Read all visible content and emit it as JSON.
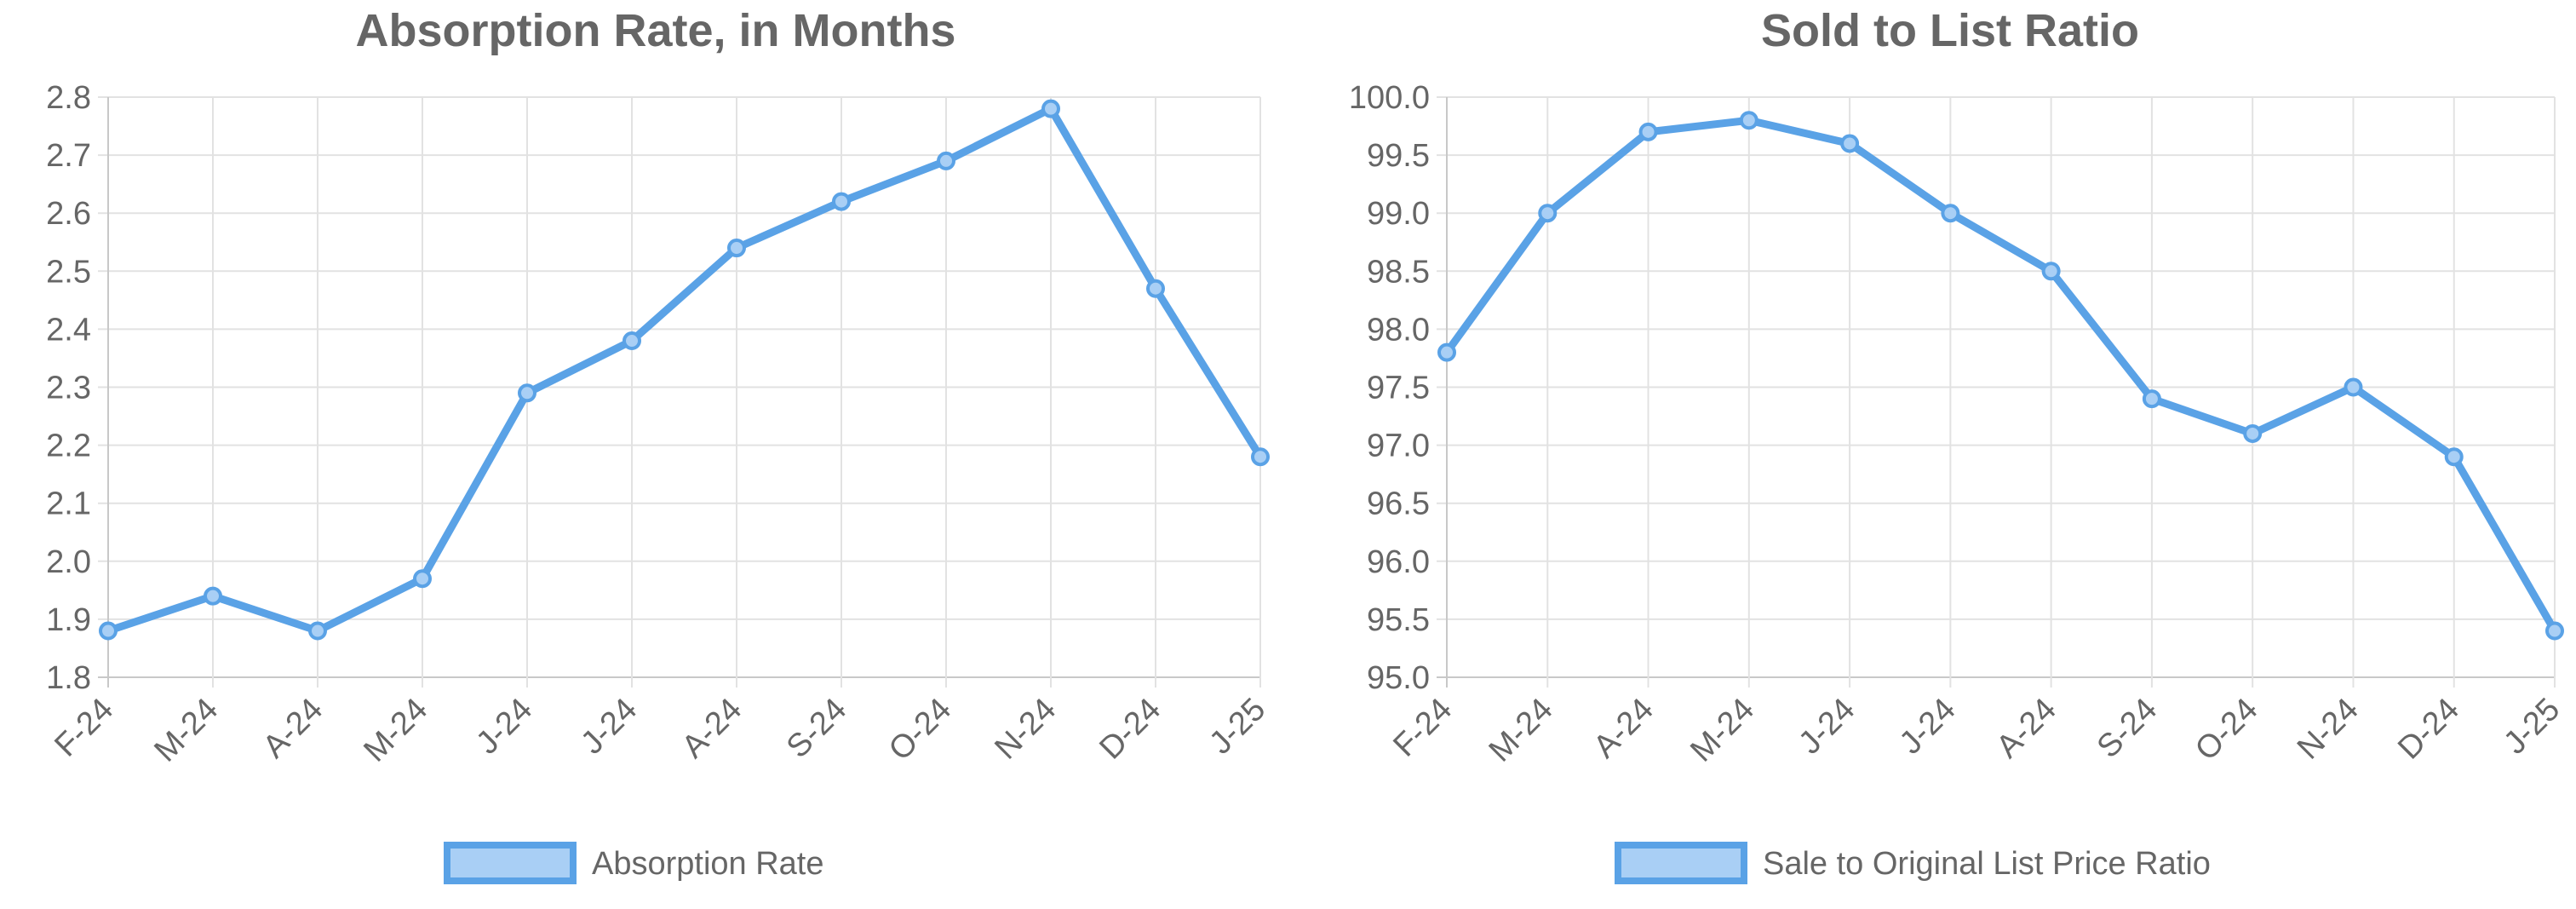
{
  "chart_data": [
    {
      "type": "line",
      "title": "Absorption Rate, in Months",
      "categories": [
        "F-24",
        "M-24",
        "A-24",
        "M-24",
        "J-24",
        "J-24",
        "A-24",
        "S-24",
        "O-24",
        "N-24",
        "D-24",
        "J-25"
      ],
      "series": [
        {
          "name": "Absorption Rate",
          "color": "#5aa2e6",
          "values": [
            1.88,
            1.94,
            1.88,
            1.97,
            2.29,
            2.38,
            2.54,
            2.62,
            2.69,
            2.78,
            2.47,
            2.18
          ]
        }
      ],
      "ylim": [
        1.8,
        2.8
      ],
      "yticks": [
        1.8,
        1.9,
        {
          "value": 2,
          "label": "2.0"
        },
        2.1,
        2.2,
        2.3,
        2.4,
        2.5,
        2.6,
        2.7,
        2.8
      ],
      "grid": true
    },
    {
      "type": "line",
      "title": "Sold to List Ratio",
      "categories": [
        "F-24",
        "M-24",
        "A-24",
        "M-24",
        "J-24",
        "J-24",
        "A-24",
        "S-24",
        "O-24",
        "N-24",
        "D-24",
        "J-25"
      ],
      "series": [
        {
          "name": "Sale to Original List Price Ratio",
          "color": "#5aa2e6",
          "values": [
            97.8,
            99.0,
            99.7,
            99.8,
            99.6,
            99.0,
            98.5,
            97.4,
            97.1,
            97.5,
            96.9,
            95.4
          ]
        }
      ],
      "ylim": [
        95,
        100
      ],
      "yticks": [
        {
          "value": 95,
          "label": "95.0"
        },
        95.5,
        {
          "value": 96,
          "label": "96.0"
        },
        96.5,
        {
          "value": 97,
          "label": "97.0"
        },
        97.5,
        {
          "value": 98,
          "label": "98.0"
        },
        98.5,
        {
          "value": 99,
          "label": "99.0"
        },
        99.5,
        {
          "value": 100,
          "label": "100.0"
        }
      ],
      "grid": true
    }
  ]
}
